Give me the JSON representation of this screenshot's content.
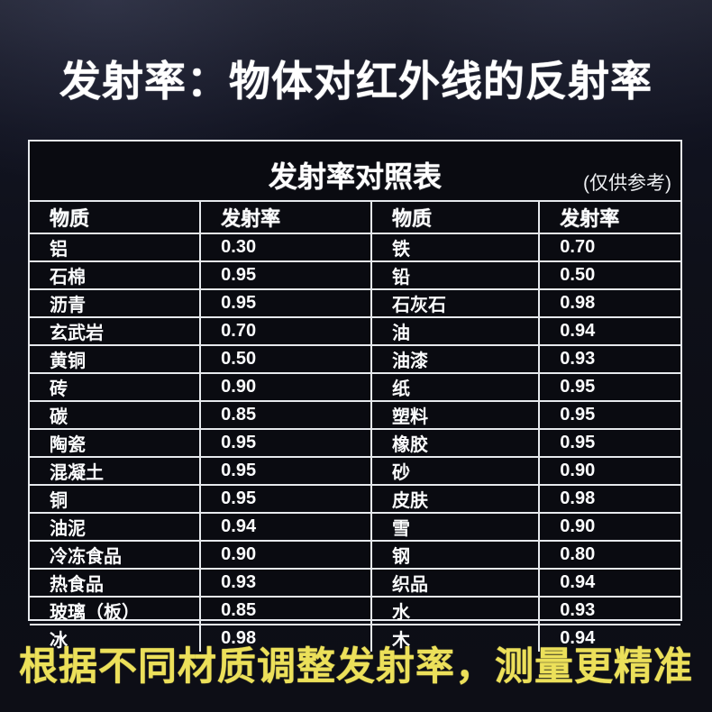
{
  "page": {
    "main_title": "发射率：物体对红外线的反射率",
    "footer_note": "根据不同材质调整发射率，测量更精准"
  },
  "table": {
    "title": "发射率对照表",
    "note": "(仅供参考)",
    "columns": [
      "物质",
      "发射率",
      "物质",
      "发射率"
    ]
  },
  "chart_data": {
    "type": "table",
    "title": "发射率对照表",
    "subtitle": "(仅供参考)",
    "columns": [
      "物质",
      "发射率",
      "物质",
      "发射率"
    ],
    "rows": [
      [
        "铝",
        "0.30",
        "铁",
        "0.70"
      ],
      [
        "石棉",
        "0.95",
        "铅",
        "0.50"
      ],
      [
        "沥青",
        "0.95",
        "石灰石",
        "0.98"
      ],
      [
        "玄武岩",
        "0.70",
        "油",
        "0.94"
      ],
      [
        "黄铜",
        "0.50",
        "油漆",
        "0.93"
      ],
      [
        "砖",
        "0.90",
        "纸",
        "0.95"
      ],
      [
        "碳",
        "0.85",
        "塑料",
        "0.95"
      ],
      [
        "陶瓷",
        "0.95",
        "橡胶",
        "0.95"
      ],
      [
        "混凝土",
        "0.95",
        "砂",
        "0.90"
      ],
      [
        "铜",
        "0.95",
        "皮肤",
        "0.98"
      ],
      [
        "油泥",
        "0.94",
        "雪",
        "0.90"
      ],
      [
        "冷冻食品",
        "0.90",
        "钢",
        "0.80"
      ],
      [
        "热食品",
        "0.93",
        "织品",
        "0.94"
      ],
      [
        "玻璃（板）",
        "0.85",
        "水",
        "0.93"
      ],
      [
        "冰",
        "0.98",
        "木",
        "0.94"
      ]
    ]
  },
  "colors": {
    "accent_yellow": "#ece05a",
    "table_line": "#e6e9ed",
    "text_white": "#ffffff",
    "background_top": "#20222f",
    "background_bottom": "#0d0e16",
    "table_background": "#0a0b11"
  }
}
